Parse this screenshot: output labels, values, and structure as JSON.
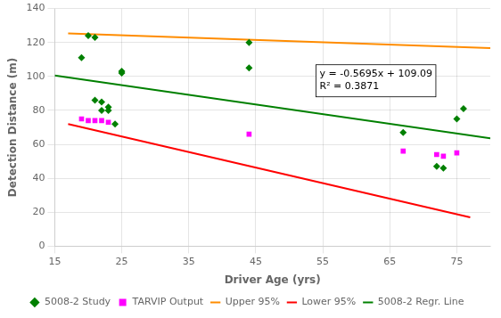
{
  "chart_data": {
    "type": "scatter",
    "title": "",
    "xlabel": "Driver Age (yrs)",
    "ylabel": "Detection Distance (m)",
    "xlim": [
      15,
      80
    ],
    "ylim": [
      0,
      140
    ],
    "xticks": [
      15,
      25,
      35,
      45,
      55,
      65,
      75
    ],
    "yticks": [
      0,
      20,
      40,
      60,
      80,
      100,
      120,
      140
    ],
    "grid": true,
    "legend": "bottom",
    "series": [
      {
        "name": "5008-2 Study",
        "type": "scatter",
        "color": "#008000",
        "marker": "diamond",
        "x": [
          19,
          20,
          21,
          21,
          22,
          22,
          23,
          23,
          24,
          25,
          25,
          44,
          44,
          67,
          72,
          73,
          75,
          76
        ],
        "values": [
          111,
          124,
          123,
          86,
          85,
          80,
          82,
          80,
          72,
          102,
          103,
          120,
          105,
          67,
          47,
          46,
          75,
          81
        ]
      },
      {
        "name": "TARVIP Output",
        "type": "scatter",
        "color": "#FF00FF",
        "marker": "square",
        "x": [
          19,
          20,
          21,
          22,
          23,
          44,
          67,
          72,
          73,
          75
        ],
        "values": [
          75,
          74,
          74,
          74,
          73,
          66,
          56,
          54,
          53,
          55
        ]
      },
      {
        "name": "Upper 95%",
        "type": "line",
        "color": "#FF8C00",
        "line_style": "solid",
        "x": [
          17,
          80
        ],
        "values": [
          125.3,
          116.7
        ]
      },
      {
        "name": "Lower 95%",
        "type": "line",
        "color": "#FF0000",
        "line_style": "solid",
        "x": [
          17,
          77
        ],
        "values": [
          72.0,
          17.0
        ]
      },
      {
        "name": "5008-2 Regr. Line",
        "type": "line",
        "color": "#008000",
        "line_style": "solid",
        "x": [
          15,
          80
        ],
        "values": [
          100.5475,
          63.53
        ]
      }
    ],
    "annotations": [
      {
        "text": "y = -0.5695x + 109.09\nR² = 0.3871",
        "x": 54,
        "y": 88
      }
    ]
  }
}
